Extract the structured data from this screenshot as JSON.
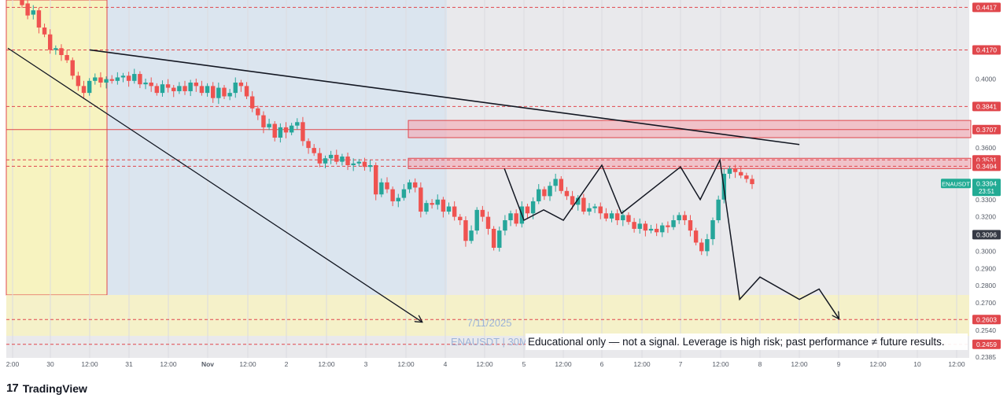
{
  "chart_data": {
    "type": "candlestick",
    "symbol": "ENAUSDT",
    "timeframe": "30M",
    "watermark_symbol": "ENAUSDT | 30M",
    "watermark_date": "7/11/2025",
    "disclaimer": "Educational only — not a signal. Leverage is high risk; past performance ≠ future results.",
    "current_price": "0.3394",
    "countdown": "23:51",
    "y_range": [
      0.238,
      0.446
    ],
    "y_ticks": [
      "0.4000",
      "0.3600",
      "0.3300",
      "0.3200",
      "0.3000",
      "0.2900",
      "0.2800",
      "0.2700",
      "0.2540",
      "0.2385"
    ],
    "x_ticks": [
      "2:00",
      "30",
      "12:00",
      "31",
      "12:00",
      "Nov",
      "12:00",
      "2",
      "12:00",
      "3",
      "12:00",
      "4",
      "12:00",
      "5",
      "12:00",
      "6",
      "12:00",
      "7",
      "12:00",
      "8",
      "12:00",
      "9",
      "12:00",
      "10",
      "12:00"
    ],
    "price_levels": [
      {
        "value": 0.4417,
        "label": "0.4417",
        "style": "dashed"
      },
      {
        "value": 0.417,
        "label": "0.4170",
        "style": "dashed"
      },
      {
        "value": 0.3841,
        "label": "0.3841",
        "style": "dashed"
      },
      {
        "value": 0.3707,
        "label": "0.3707",
        "style": "solid"
      },
      {
        "value": 0.3531,
        "label": "0.3531",
        "style": "dashed"
      },
      {
        "value": 0.3494,
        "label": "0.3494",
        "style": "dashed"
      },
      {
        "value": 0.2603,
        "label": "0.2603",
        "style": "dashed"
      },
      {
        "value": 0.2459,
        "label": "0.2459",
        "style": "dashed"
      }
    ],
    "secondary_label": "0.3096",
    "resistance_zones": [
      {
        "from": 0.366,
        "to": 0.376
      },
      {
        "from": 0.348,
        "to": 0.354
      }
    ],
    "close_path": [
      [
        0.446,
        0.443
      ],
      [
        0.444,
        0.437
      ],
      [
        0.4375,
        0.44
      ],
      [
        0.44,
        0.43
      ],
      [
        0.43,
        0.426
      ],
      [
        0.426,
        0.417
      ],
      [
        0.417,
        0.418
      ],
      [
        0.418,
        0.414
      ],
      [
        0.414,
        0.411
      ],
      [
        0.411,
        0.402
      ],
      [
        0.402,
        0.396
      ],
      [
        0.396,
        0.392
      ],
      [
        0.392,
        0.399
      ],
      [
        0.399,
        0.401
      ],
      [
        0.401,
        0.398
      ],
      [
        0.398,
        0.4
      ],
      [
        0.4,
        0.399
      ],
      [
        0.399,
        0.401
      ],
      [
        0.401,
        0.402
      ],
      [
        0.402,
        0.399
      ],
      [
        0.399,
        0.403
      ],
      [
        0.403,
        0.397
      ],
      [
        0.397,
        0.398
      ],
      [
        0.398,
        0.396
      ],
      [
        0.396,
        0.392
      ],
      [
        0.392,
        0.397
      ],
      [
        0.397,
        0.395
      ],
      [
        0.395,
        0.393
      ],
      [
        0.393,
        0.396
      ],
      [
        0.396,
        0.393
      ],
      [
        0.393,
        0.398
      ],
      [
        0.398,
        0.396
      ],
      [
        0.396,
        0.392
      ],
      [
        0.392,
        0.396
      ],
      [
        0.396,
        0.389
      ],
      [
        0.389,
        0.395
      ],
      [
        0.395,
        0.39
      ],
      [
        0.39,
        0.392
      ],
      [
        0.392,
        0.398
      ],
      [
        0.398,
        0.396
      ],
      [
        0.396,
        0.39
      ],
      [
        0.39,
        0.383
      ],
      [
        0.383,
        0.379
      ],
      [
        0.379,
        0.372
      ],
      [
        0.372,
        0.374
      ],
      [
        0.374,
        0.366
      ],
      [
        0.366,
        0.372
      ],
      [
        0.372,
        0.369
      ],
      [
        0.369,
        0.373
      ],
      [
        0.373,
        0.375
      ],
      [
        0.375,
        0.364
      ],
      [
        0.364,
        0.36
      ],
      [
        0.36,
        0.357
      ],
      [
        0.357,
        0.351
      ],
      [
        0.351,
        0.354
      ],
      [
        0.354,
        0.356
      ],
      [
        0.356,
        0.352
      ],
      [
        0.352,
        0.355
      ],
      [
        0.355,
        0.35
      ],
      [
        0.35,
        0.351
      ],
      [
        0.351,
        0.352
      ],
      [
        0.352,
        0.349
      ],
      [
        0.349,
        0.35
      ],
      [
        0.35,
        0.333
      ],
      [
        0.333,
        0.34
      ],
      [
        0.34,
        0.336
      ],
      [
        0.336,
        0.329
      ],
      [
        0.329,
        0.331
      ],
      [
        0.331,
        0.336
      ],
      [
        0.336,
        0.34
      ],
      [
        0.34,
        0.337
      ],
      [
        0.337,
        0.323
      ],
      [
        0.323,
        0.328
      ],
      [
        0.328,
        0.327
      ],
      [
        0.327,
        0.33
      ],
      [
        0.33,
        0.323
      ],
      [
        0.323,
        0.326
      ],
      [
        0.326,
        0.32
      ],
      [
        0.32,
        0.318
      ],
      [
        0.318,
        0.306
      ],
      [
        0.306,
        0.312
      ],
      [
        0.312,
        0.324
      ],
      [
        0.324,
        0.32
      ],
      [
        0.32,
        0.313
      ],
      [
        0.313,
        0.302
      ],
      [
        0.302,
        0.312
      ],
      [
        0.312,
        0.318
      ],
      [
        0.318,
        0.322
      ],
      [
        0.322,
        0.316
      ],
      [
        0.316,
        0.326
      ],
      [
        0.326,
        0.322
      ],
      [
        0.322,
        0.329
      ],
      [
        0.329,
        0.336
      ],
      [
        0.336,
        0.332
      ],
      [
        0.332,
        0.338
      ],
      [
        0.338,
        0.342
      ],
      [
        0.342,
        0.335
      ],
      [
        0.335,
        0.332
      ],
      [
        0.332,
        0.327
      ],
      [
        0.327,
        0.331
      ],
      [
        0.331,
        0.323
      ],
      [
        0.323,
        0.325
      ],
      [
        0.325,
        0.326
      ],
      [
        0.326,
        0.322
      ],
      [
        0.322,
        0.319
      ],
      [
        0.319,
        0.322
      ],
      [
        0.322,
        0.318
      ],
      [
        0.318,
        0.321
      ],
      [
        0.321,
        0.317
      ],
      [
        0.317,
        0.313
      ],
      [
        0.313,
        0.316
      ],
      [
        0.316,
        0.312
      ],
      [
        0.312,
        0.313
      ],
      [
        0.313,
        0.311
      ],
      [
        0.311,
        0.315
      ],
      [
        0.315,
        0.314
      ],
      [
        0.314,
        0.318
      ],
      [
        0.318,
        0.321
      ],
      [
        0.321,
        0.318
      ],
      [
        0.318,
        0.312
      ],
      [
        0.312,
        0.305
      ],
      [
        0.305,
        0.3
      ],
      [
        0.3,
        0.307
      ],
      [
        0.307,
        0.318
      ],
      [
        0.318,
        0.33
      ],
      [
        0.33,
        0.345
      ],
      [
        0.345,
        0.348
      ],
      [
        0.348,
        0.346
      ],
      [
        0.346,
        0.344
      ],
      [
        0.344,
        0.342
      ],
      [
        0.342,
        0.339
      ]
    ],
    "annotations": [
      {
        "type": "trendline",
        "from": [
          "Oct 30 12:00",
          0.417
        ],
        "to": [
          "Nov 8 12:00",
          0.362
        ]
      },
      {
        "type": "arrow",
        "from": [
          "Oct 29",
          0.418
        ],
        "to": [
          "Nov 4",
          0.259
        ]
      },
      {
        "type": "projection",
        "points": [
          [
            "Nov 4 18:00",
            0.348
          ],
          [
            "Nov 5 00:00",
            0.318
          ],
          [
            "Nov 5 06:00",
            0.324
          ],
          [
            "Nov 5 12:00",
            0.318
          ],
          [
            "Nov 6 00:00",
            0.35
          ],
          [
            "Nov 6 06:00",
            0.322
          ],
          [
            "Nov 7 00:00",
            0.349
          ],
          [
            "Nov 7 06:00",
            0.33
          ],
          [
            "Nov 7 12:00",
            0.353
          ],
          [
            "Nov 7 18:00",
            0.272
          ],
          [
            "Nov 8 00:00",
            0.285
          ],
          [
            "Nov 8 12:00",
            0.272
          ],
          [
            "Nov 8 18:00",
            0.278
          ],
          [
            "Nov 9 00:00",
            0.261
          ]
        ]
      }
    ]
  },
  "brand": {
    "name": "TradingView",
    "icon": "tradingview-logo-icon"
  },
  "colors": {
    "up": "#26a69a",
    "down": "#ef5350",
    "level": "#e0474c",
    "price_tag": "#22ab94",
    "dark_tag": "#363a45",
    "zone_fill": "#f5a3ad",
    "yellow_zone": "#f7f3c0",
    "blue_zone": "#dbe5ef"
  }
}
